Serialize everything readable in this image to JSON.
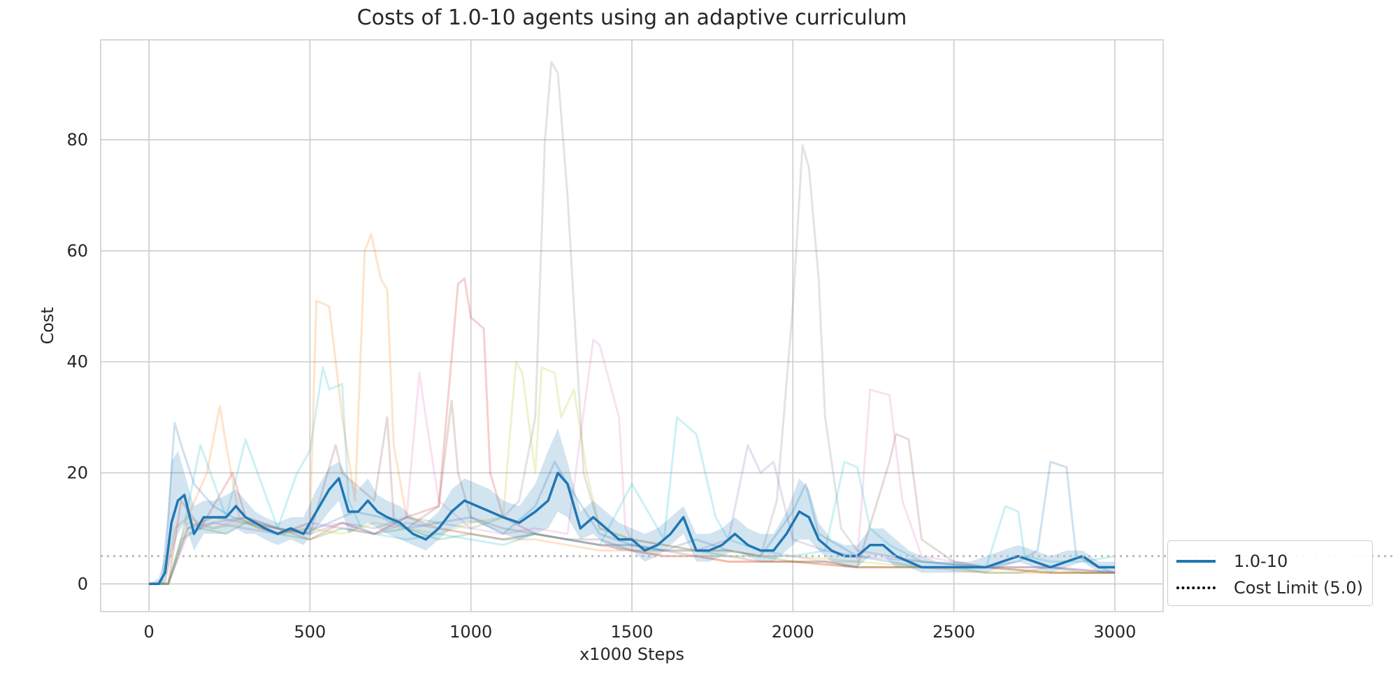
{
  "chart_data": {
    "type": "line",
    "title": "Costs of 1.0-10 agents using an adaptive curriculum",
    "xlabel": "x1000 Steps",
    "ylabel": "Cost",
    "xlim": [
      -150,
      3150
    ],
    "ylim": [
      -5,
      98
    ],
    "xticks": [
      0,
      500,
      1000,
      1500,
      2000,
      2500,
      3000
    ],
    "yticks": [
      0,
      20,
      40,
      60,
      80
    ],
    "grid": true,
    "legend_position": "lower right, outside plot",
    "cost_limit": {
      "label": "Cost Limit (5.0)",
      "value": 5.0,
      "color": "#bbbbbb"
    },
    "series": [
      {
        "name": "1.0-10",
        "color": "#1f77b4",
        "x": [
          0,
          30,
          50,
          70,
          90,
          110,
          140,
          170,
          200,
          240,
          270,
          300,
          330,
          360,
          400,
          440,
          480,
          520,
          560,
          590,
          620,
          650,
          680,
          710,
          740,
          780,
          820,
          860,
          900,
          940,
          980,
          1020,
          1060,
          1100,
          1150,
          1200,
          1240,
          1270,
          1300,
          1340,
          1380,
          1420,
          1460,
          1500,
          1540,
          1580,
          1620,
          1660,
          1700,
          1740,
          1780,
          1820,
          1860,
          1900,
          1940,
          1980,
          2020,
          2050,
          2080,
          2120,
          2160,
          2200,
          2240,
          2280,
          2320,
          2360,
          2400,
          2450,
          2500,
          2550,
          2600,
          2650,
          2700,
          2750,
          2800,
          2850,
          2900,
          2950,
          3000
        ],
        "y": [
          0,
          0,
          2,
          11,
          15,
          16,
          9,
          12,
          12,
          12,
          14,
          12,
          11,
          10,
          9,
          10,
          9,
          13,
          17,
          19,
          13,
          13,
          15,
          13,
          12,
          11,
          9,
          8,
          10,
          13,
          15,
          14,
          13,
          12,
          11,
          13,
          15,
          20,
          18,
          10,
          12,
          10,
          8,
          8,
          6,
          7,
          9,
          12,
          6,
          6,
          7,
          9,
          7,
          6,
          6,
          9,
          13,
          12,
          8,
          6,
          5,
          5,
          7,
          7,
          5,
          4,
          3,
          3,
          3,
          3,
          3,
          4,
          5,
          4,
          3,
          4,
          5,
          3,
          3
        ],
        "band_upper": [
          0,
          1,
          5,
          22,
          24,
          20,
          14,
          15,
          15,
          16,
          17,
          15,
          13,
          12,
          11,
          12,
          12,
          17,
          21,
          22,
          19,
          17,
          19,
          16,
          15,
          14,
          12,
          11,
          13,
          17,
          19,
          18,
          17,
          15,
          14,
          18,
          24,
          28,
          22,
          13,
          15,
          13,
          11,
          10,
          9,
          10,
          12,
          14,
          9,
          9,
          10,
          12,
          10,
          9,
          9,
          13,
          19,
          17,
          11,
          8,
          7,
          7,
          10,
          10,
          8,
          6,
          5,
          4,
          4,
          4,
          5,
          6,
          7,
          6,
          5,
          6,
          6,
          4,
          4
        ],
        "band_lower": [
          0,
          0,
          0,
          5,
          9,
          11,
          6,
          9,
          9,
          9,
          10,
          9,
          9,
          8,
          7,
          8,
          7,
          10,
          13,
          15,
          9,
          10,
          11,
          10,
          9,
          8,
          7,
          6,
          8,
          10,
          11,
          11,
          10,
          9,
          8,
          9,
          10,
          13,
          12,
          8,
          9,
          7,
          6,
          6,
          4,
          5,
          7,
          9,
          4,
          4,
          5,
          6,
          5,
          4,
          4,
          6,
          8,
          8,
          6,
          4,
          3,
          3,
          5,
          5,
          3,
          3,
          2,
          2,
          2,
          2,
          2,
          3,
          4,
          3,
          2,
          3,
          4,
          2,
          2
        ]
      }
    ],
    "individual_runs": [
      {
        "color": "#1f77b4",
        "x": [
          0,
          40,
          60,
          80,
          100,
          140,
          200,
          260,
          320,
          400,
          480,
          560,
          640,
          720,
          800,
          900,
          1000,
          1100,
          1200,
          1260,
          1300,
          1400,
          1500,
          1600,
          1700,
          1800,
          1900,
          2000,
          2040,
          2080,
          2200,
          2400,
          2600,
          2700,
          2760,
          2800,
          2850,
          2880,
          2950,
          3000
        ],
        "y": [
          0,
          0,
          12,
          29,
          25,
          18,
          14,
          12,
          11,
          10,
          9,
          11,
          13,
          12,
          10,
          11,
          12,
          9,
          14,
          22,
          18,
          9,
          7,
          6,
          8,
          6,
          5,
          13,
          18,
          9,
          5,
          3,
          3,
          4,
          6,
          22,
          21,
          5,
          3,
          2
        ]
      },
      {
        "color": "#ff7f0e",
        "x": [
          0,
          50,
          80,
          120,
          180,
          220,
          240,
          280,
          340,
          420,
          500,
          520,
          560,
          600,
          640,
          670,
          690,
          720,
          740,
          760,
          800,
          900,
          1000,
          1100,
          1200,
          1300,
          1400,
          1500,
          1600,
          1700,
          1800,
          1900,
          2000,
          2200,
          2400,
          2600,
          2800,
          3000
        ],
        "y": [
          0,
          0,
          10,
          12,
          20,
          32,
          25,
          12,
          10,
          9,
          11,
          51,
          50,
          30,
          15,
          60,
          63,
          55,
          53,
          25,
          12,
          10,
          9,
          8,
          8,
          7,
          6,
          6,
          5,
          5,
          4,
          4,
          4,
          3,
          3,
          2,
          2,
          2
        ]
      },
      {
        "color": "#2ca02c",
        "x": [
          0,
          60,
          100,
          160,
          240,
          300,
          400,
          500,
          600,
          700,
          800,
          900,
          1000,
          1100,
          1200,
          1300,
          1400,
          1500,
          1600,
          1700,
          1800,
          1900,
          2000,
          2100,
          2200,
          2300,
          2400,
          2500,
          2600,
          2700,
          2800,
          2900,
          3000
        ],
        "y": [
          0,
          0,
          8,
          10,
          9,
          11,
          9,
          8,
          10,
          9,
          10,
          8,
          9,
          8,
          9,
          8,
          7,
          7,
          6,
          6,
          5,
          5,
          4,
          4,
          3,
          3,
          3,
          3,
          2,
          2,
          3,
          2,
          2
        ]
      },
      {
        "color": "#d62728",
        "x": [
          0,
          60,
          100,
          160,
          260,
          300,
          400,
          500,
          600,
          700,
          800,
          900,
          960,
          980,
          1000,
          1040,
          1060,
          1100,
          1200,
          1300,
          1400,
          1500,
          1600,
          1700,
          1800,
          1900,
          2000,
          2200,
          2400,
          2600,
          2800,
          3000
        ],
        "y": [
          0,
          0,
          15,
          10,
          20,
          12,
          10,
          8,
          11,
          9,
          12,
          14,
          54,
          55,
          48,
          46,
          20,
          12,
          9,
          8,
          7,
          6,
          5,
          5,
          4,
          4,
          4,
          3,
          3,
          3,
          2,
          2
        ]
      },
      {
        "color": "#9467bd",
        "x": [
          0,
          60,
          120,
          200,
          300,
          400,
          500,
          600,
          700,
          800,
          900,
          1000,
          1100,
          1200,
          1300,
          1400,
          1500,
          1600,
          1700,
          1800,
          1860,
          1900,
          1940,
          2000,
          2100,
          2200,
          2400,
          2600,
          2800,
          3000
        ],
        "y": [
          0,
          0,
          9,
          11,
          10,
          9,
          11,
          10,
          9,
          11,
          10,
          9,
          8,
          9,
          8,
          7,
          7,
          6,
          6,
          8,
          25,
          20,
          22,
          8,
          6,
          5,
          4,
          3,
          3,
          2
        ]
      },
      {
        "color": "#8c564b",
        "x": [
          0,
          60,
          120,
          200,
          300,
          400,
          500,
          580,
          600,
          700,
          740,
          760,
          800,
          900,
          940,
          960,
          1000,
          1100,
          1200,
          1300,
          1400,
          1500,
          1600,
          1700,
          1800,
          1900,
          2000,
          2100,
          2200,
          2300,
          2320,
          2360,
          2400,
          2500,
          2600,
          2800,
          3000
        ],
        "y": [
          0,
          0,
          10,
          12,
          11,
          10,
          9,
          25,
          20,
          15,
          30,
          12,
          10,
          14,
          33,
          20,
          12,
          10,
          9,
          8,
          8,
          6,
          6,
          5,
          5,
          4,
          4,
          4,
          3,
          22,
          27,
          26,
          8,
          4,
          3,
          2,
          2
        ]
      },
      {
        "color": "#e377c2",
        "x": [
          0,
          60,
          120,
          200,
          300,
          400,
          500,
          600,
          700,
          800,
          840,
          860,
          900,
          1000,
          1100,
          1200,
          1300,
          1380,
          1400,
          1460,
          1480,
          1500,
          1600,
          1700,
          1800,
          1900,
          2000,
          2100,
          2200,
          2240,
          2300,
          2340,
          2400,
          2500,
          2600,
          2800,
          3000
        ],
        "y": [
          0,
          0,
          11,
          10,
          12,
          9,
          10,
          11,
          9,
          12,
          38,
          30,
          15,
          10,
          9,
          10,
          9,
          44,
          43,
          30,
          10,
          8,
          7,
          6,
          6,
          5,
          5,
          4,
          4,
          35,
          34,
          15,
          5,
          4,
          3,
          3,
          2
        ]
      },
      {
        "color": "#7f7f7f",
        "x": [
          0,
          60,
          120,
          200,
          300,
          400,
          500,
          600,
          700,
          800,
          900,
          1000,
          1100,
          1150,
          1200,
          1230,
          1250,
          1270,
          1300,
          1320,
          1350,
          1400,
          1500,
          1600,
          1700,
          1800,
          1900,
          1950,
          2000,
          2030,
          2050,
          2080,
          2100,
          2150,
          2200,
          2400,
          2600,
          2800,
          3000
        ],
        "y": [
          0,
          0,
          10,
          11,
          12,
          10,
          9,
          11,
          10,
          12,
          11,
          10,
          12,
          15,
          30,
          80,
          94,
          92,
          70,
          50,
          20,
          10,
          8,
          7,
          6,
          6,
          5,
          15,
          50,
          79,
          75,
          55,
          30,
          10,
          6,
          4,
          3,
          3,
          2
        ]
      },
      {
        "color": "#bcbd22",
        "x": [
          0,
          60,
          120,
          200,
          300,
          400,
          500,
          600,
          700,
          800,
          900,
          1000,
          1100,
          1140,
          1160,
          1200,
          1220,
          1260,
          1280,
          1320,
          1360,
          1400,
          1500,
          1600,
          1700,
          1800,
          1900,
          2000,
          2200,
          2400,
          2600,
          2800,
          3000
        ],
        "y": [
          0,
          0,
          12,
          10,
          11,
          9,
          10,
          9,
          11,
          10,
          9,
          11,
          12,
          40,
          38,
          20,
          39,
          38,
          30,
          35,
          20,
          10,
          8,
          7,
          6,
          6,
          5,
          5,
          4,
          3,
          3,
          2,
          2
        ]
      },
      {
        "color": "#17becf",
        "x": [
          0,
          60,
          100,
          160,
          240,
          300,
          400,
          460,
          480,
          500,
          540,
          560,
          600,
          620,
          660,
          700,
          800,
          900,
          1000,
          1100,
          1200,
          1300,
          1400,
          1500,
          1600,
          1640,
          1660,
          1700,
          1760,
          1800,
          1900,
          2000,
          2100,
          2160,
          2200,
          2240,
          2300,
          2400,
          2600,
          2660,
          2700,
          2720,
          2800,
          2900,
          3000
        ],
        "y": [
          0,
          0,
          8,
          25,
          12,
          26,
          10,
          20,
          22,
          24,
          39,
          35,
          36,
          15,
          10,
          9,
          8,
          9,
          8,
          7,
          9,
          8,
          7,
          18,
          8,
          30,
          29,
          27,
          12,
          8,
          6,
          5,
          6,
          22,
          21,
          10,
          7,
          4,
          3,
          14,
          13,
          5,
          4,
          4,
          5
        ]
      }
    ]
  }
}
